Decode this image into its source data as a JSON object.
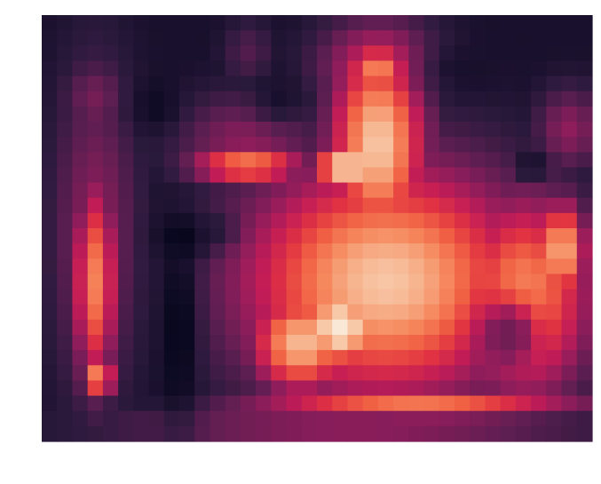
{
  "chart_data": {
    "type": "heatmap",
    "title": "",
    "xlabel": "",
    "ylabel": "",
    "n_cols": 36,
    "n_rows": 28,
    "value_range": [
      0,
      1
    ],
    "colormap": "rocket",
    "colormap_stops": [
      "#03051a",
      "#2c1a3d",
      "#5c1e51",
      "#8e1d5b",
      "#c21c57",
      "#e13342",
      "#f06043",
      "#f6895f",
      "#f6b48e",
      "#fae0c8",
      "#faebdd"
    ],
    "background_value": 0.05,
    "features": [
      {
        "name": "left-pillar",
        "cx": 3,
        "cy": 17,
        "rx": 1.3,
        "ry": 6.2,
        "peak": 0.68
      },
      {
        "name": "left-pillar-glow",
        "cx": 3,
        "cy": 14,
        "rx": 2.5,
        "ry": 10,
        "peak": 0.3
      },
      {
        "name": "left-top-glow",
        "cx": 3,
        "cy": 5,
        "rx": 2,
        "ry": 2.5,
        "peak": 0.25
      },
      {
        "name": "left-base",
        "cx": 3.2,
        "cy": 23.3,
        "rx": 1,
        "ry": 1.2,
        "peak": 0.72
      },
      {
        "name": "upper-arm",
        "cx": 13,
        "cy": 9.3,
        "rx": 3.5,
        "ry": 1.3,
        "peak": 0.66
      },
      {
        "name": "upper-arm-glow",
        "cx": 13,
        "cy": 8,
        "rx": 4.5,
        "ry": 3,
        "peak": 0.3
      },
      {
        "name": "top-left-patch",
        "cx": 13,
        "cy": 2,
        "rx": 1.5,
        "ry": 2,
        "peak": 0.18
      },
      {
        "name": "central-tower",
        "cx": 21.5,
        "cy": 8,
        "rx": 2.8,
        "ry": 6,
        "peak": 0.85
      },
      {
        "name": "tower-top",
        "cx": 21.5,
        "cy": 3,
        "rx": 2,
        "ry": 1.5,
        "peak": 0.7
      },
      {
        "name": "tower-glow",
        "cx": 21.5,
        "cy": 3,
        "rx": 3.5,
        "ry": 3,
        "peak": 0.45
      },
      {
        "name": "shoulder-bright",
        "cx": 19.5,
        "cy": 9.5,
        "rx": 2,
        "ry": 1.5,
        "peak": 0.93
      },
      {
        "name": "main-body",
        "cx": 22,
        "cy": 17,
        "rx": 8.5,
        "ry": 7,
        "peak": 0.84
      },
      {
        "name": "body-left",
        "cx": 16.5,
        "cy": 21,
        "rx": 3,
        "ry": 3,
        "peak": 0.82
      },
      {
        "name": "bright-core",
        "cx": 19,
        "cy": 20,
        "rx": 2.5,
        "ry": 2.5,
        "peak": 0.97
      },
      {
        "name": "right-block",
        "cx": 31,
        "cy": 18,
        "rx": 4,
        "ry": 6,
        "peak": 0.72
      },
      {
        "name": "right-edge",
        "cx": 33.5,
        "cy": 15,
        "rx": 1.5,
        "ry": 3,
        "peak": 0.8
      },
      {
        "name": "right-top-glow",
        "cx": 34,
        "cy": 7,
        "rx": 2,
        "ry": 2.5,
        "peak": 0.3
      },
      {
        "name": "bottom-strip",
        "cx": 24,
        "cy": 25,
        "rx": 10,
        "ry": 1,
        "peak": 0.65
      },
      {
        "name": "bottom-glow",
        "cx": 20,
        "cy": 26.5,
        "rx": 14,
        "ry": 1,
        "peak": 0.35
      }
    ],
    "holes": [
      {
        "name": "ring-hole",
        "cx": 30,
        "cy": 20.5,
        "rx": 1.2,
        "ry": 1.5,
        "to": 0.0
      },
      {
        "name": "ring-dark",
        "cx": 30,
        "cy": 20.5,
        "rx": 2.5,
        "ry": 2.8,
        "to": 0.25
      },
      {
        "name": "gap-left",
        "cx": 8.5,
        "cy": 20,
        "rx": 1.5,
        "ry": 8,
        "to": 0.0
      },
      {
        "name": "gap-left-upper",
        "cx": 9,
        "cy": 14,
        "rx": 2.3,
        "ry": 1.6,
        "to": 0.0
      },
      {
        "name": "gap-corner",
        "cx": 10.8,
        "cy": 13.6,
        "rx": 1.6,
        "ry": 1.2,
        "to": 0.08
      },
      {
        "name": "right-notch",
        "cx": 31.5,
        "cy": 9.5,
        "rx": 1,
        "ry": 1,
        "to": 0.0
      },
      {
        "name": "top-gap",
        "cx": 27,
        "cy": 3,
        "rx": 3,
        "ry": 2.2,
        "to": 0.05
      },
      {
        "name": "upper-left-gap",
        "cx": 7,
        "cy": 5.5,
        "rx": 2,
        "ry": 2,
        "to": 0.03
      },
      {
        "name": "upper-mid-gap",
        "cx": 15,
        "cy": 5,
        "rx": 2,
        "ry": 2,
        "to": 0.05
      }
    ]
  }
}
